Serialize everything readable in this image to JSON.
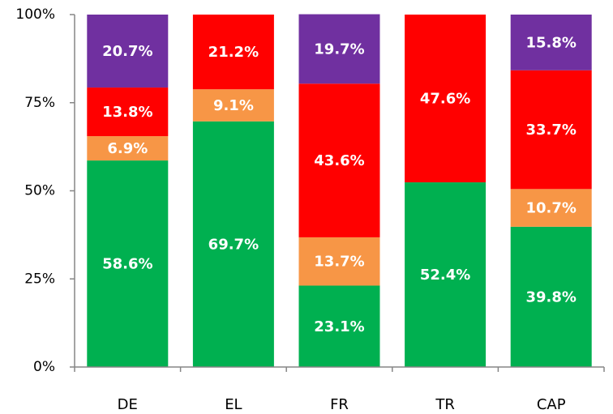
{
  "chart_data": {
    "type": "stacked_bar",
    "categories": [
      "DE",
      "EL",
      "FR",
      "TR",
      "CAP"
    ],
    "series": [
      {
        "color": "#00b050",
        "values": [
          58.6,
          69.7,
          23.1,
          52.4,
          39.8
        ],
        "value_labels": [
          "58.6%",
          "69.7%",
          "23.1%",
          "52.4%",
          "39.8%"
        ]
      },
      {
        "color": "#f79646",
        "values": [
          6.9,
          9.1,
          13.7,
          null,
          10.7
        ],
        "value_labels": [
          "6.9%",
          "9.1%",
          "13.7%",
          null,
          "10.7%"
        ]
      },
      {
        "color": "#ff0000",
        "values": [
          13.8,
          21.2,
          43.6,
          47.6,
          33.7
        ],
        "value_labels": [
          "13.8%",
          "21.2%",
          "43.6%",
          "47.6%",
          "33.7%"
        ]
      },
      {
        "color": "#7030a0",
        "values": [
          20.7,
          null,
          19.7,
          null,
          15.8
        ],
        "value_labels": [
          "20.7%",
          null,
          "19.7%",
          null,
          "15.8%"
        ]
      }
    ],
    "ylim": [
      0,
      100
    ],
    "yticks": [
      {
        "value": 0,
        "label": "0%"
      },
      {
        "value": 25,
        "label": "25%"
      },
      {
        "value": 50,
        "label": "50%"
      },
      {
        "value": 75,
        "label": "75%"
      },
      {
        "value": 100,
        "label": "100%"
      }
    ]
  }
}
